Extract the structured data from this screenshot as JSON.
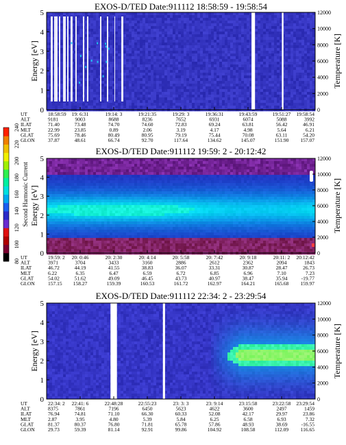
{
  "chart_data": [
    {
      "type": "heatmap",
      "title_instrument": "EXOS-D/TED",
      "title_date": "Date:911112",
      "title_time": "18:58:59 - 19:58:54",
      "ylabel": "Energy [eV]",
      "y2label": "Temperature [K]",
      "ylim": [
        0,
        5
      ],
      "yticks": [
        "0",
        "1",
        "2",
        "3",
        "4",
        "5"
      ],
      "y2lim": [
        0,
        12000
      ],
      "y2ticks": [
        "0",
        "2000",
        "4000",
        "6000",
        "8000",
        "10000",
        "12000"
      ],
      "orbit_rows": [
        "UT",
        "ALT",
        "ILAT",
        "MLT",
        "GLAT",
        "GLON"
      ],
      "orbit_columns": [
        [
          "18:58:59",
          "9181",
          "71.40",
          "22.99",
          "75.69",
          "37.87"
        ],
        [
          "19: 6:31",
          "9003",
          "73.48",
          "23.85",
          "78.46",
          "48.61"
        ],
        [
          "19:14: 3",
          "8688",
          "74.70",
          "0.89",
          "80.49",
          "66.74"
        ],
        [
          "19:21:35",
          "8236",
          "74.60",
          "2.06",
          "80.95",
          "92.70"
        ],
        [
          "19:29: 3",
          "7652",
          "72.83",
          "3.19",
          "79.19",
          "117.64"
        ],
        [
          "19:36:31",
          "6931",
          "69.24",
          "4.17",
          "75.44",
          "134.62"
        ],
        [
          "19:43:59",
          "6074",
          "63.81",
          "4.98",
          "70.08",
          "145.07"
        ],
        [
          "19:51:27",
          "5088",
          "56.42",
          "5.64",
          "63.11",
          "151.90"
        ],
        [
          "19:58:54",
          "3992",
          "46.91",
          "6.21",
          "54.20",
          "157.07"
        ]
      ],
      "data_gaps_fraction": [
        [
          0.763,
          0.776
        ],
        [
          0.876,
          0.882
        ]
      ]
    },
    {
      "type": "heatmap",
      "title_instrument": "EXOS-D/TED",
      "title_date": "Date:911112",
      "title_time": "19:59: 2 - 20:12:42",
      "ylabel": "Energy [eV]",
      "y2label": "Temperature [K]",
      "ylim": [
        0,
        5
      ],
      "yticks": [
        "0",
        "1",
        "2",
        "3",
        "4",
        "5"
      ],
      "y2lim": [
        0,
        12000
      ],
      "y2ticks": [
        "0",
        "2000",
        "4000",
        "6000",
        "8000",
        "10000",
        "12000"
      ],
      "orbit_rows": [
        "UT",
        "ALT",
        "ILAT",
        "MLT",
        "GLAT",
        "GLON"
      ],
      "orbit_columns": [
        [
          "19:59: 2",
          "3971",
          "46.72",
          "6.22",
          "54.02",
          "157.15"
        ],
        [
          "20: 0:46",
          "3704",
          "44.19",
          "6.35",
          "51.62",
          "158.27"
        ],
        [
          "20: 2:30",
          "3433",
          "41.55",
          "6.47",
          "49.09",
          "159.39"
        ],
        [
          "20: 4:14",
          "3160",
          "38.83",
          "6.59",
          "46.45",
          "160.53"
        ],
        [
          "20: 5:58",
          "2886",
          "36.07",
          "6.72",
          "43.73",
          "161.72"
        ],
        [
          "20: 7:42",
          "2612",
          "33.31",
          "6.85",
          "40.97",
          "162.97"
        ],
        [
          "20: 9:18",
          "2362",
          "30.87",
          "6.96",
          "38.47",
          "164.21"
        ],
        [
          "20:11: 2",
          "2094",
          "28.47",
          "7.10",
          "35.94",
          "165.68"
        ],
        [
          "20:12:42",
          "1843",
          "26.73",
          "7.23",
          "-19.77",
          "159.97"
        ]
      ],
      "data_gaps_fraction": []
    },
    {
      "type": "heatmap",
      "title_instrument": "EXOS-D/TED",
      "title_date": "Date:911112",
      "title_time": "22:34: 2 - 23:29:54",
      "ylabel": "Energy [eV]",
      "y2label": "Temperature [K]",
      "ylim": [
        0,
        5
      ],
      "yticks": [
        "0",
        "1",
        "2",
        "3",
        "4",
        "5"
      ],
      "y2lim": [
        0,
        12000
      ],
      "y2ticks": [
        "0",
        "2000",
        "4000",
        "6000",
        "8000",
        "10000",
        "12000"
      ],
      "orbit_rows": [
        "UT",
        "ALT",
        "ILAT",
        "MLT",
        "GLAT",
        "GLON"
      ],
      "orbit_columns": [
        [
          "22:34: 2",
          "8375",
          "76.94",
          "2.87",
          "81.37",
          "29.73"
        ],
        [
          "22:41: 6",
          "7861",
          "74.81",
          "3.95",
          "80.37",
          "59.39"
        ],
        [
          "22:48:28",
          "7196",
          "71.10",
          "4.80",
          "76.80",
          "81.14"
        ],
        [
          "22:55:23",
          "6450",
          "66.30",
          "5.39",
          "71.81",
          "92.91"
        ],
        [
          "23: 3: 3",
          "5623",
          "60.33",
          "5.84",
          "65.78",
          "99.86"
        ],
        [
          "23: 9:14",
          "4622",
          "52.08",
          "6.25",
          "57.86",
          "104.92"
        ],
        [
          "23:15:58",
          "3600",
          "42.17",
          "6.58",
          "48.93",
          "108.58"
        ],
        [
          "23:22:58",
          "2497",
          "29.97",
          "6.93",
          "38.69",
          "112.09"
        ],
        [
          "23:29:54",
          "1459",
          "23.86",
          "7.32",
          "-16.55",
          "116.65"
        ]
      ],
      "data_gaps_fraction": [
        [
          0.238,
          0.262
        ],
        [
          0.433,
          0.441
        ]
      ]
    }
  ],
  "colorbar": {
    "label": "Second Harmonic Current",
    "range": [
      80,
      240
    ],
    "ticks": [
      "80",
      "100",
      "120",
      "140",
      "160",
      "180",
      "200",
      "220",
      "240"
    ],
    "colors": [
      "#000000",
      "#7a0030",
      "#b00000",
      "#e01010",
      "#6a2bd0",
      "#2a2ac8",
      "#1a5ef0",
      "#00a8f0",
      "#00e0e0",
      "#00f0a0",
      "#30f050",
      "#a0f000",
      "#f0f000",
      "#f0c000",
      "#f08000",
      "#ff2000"
    ]
  }
}
